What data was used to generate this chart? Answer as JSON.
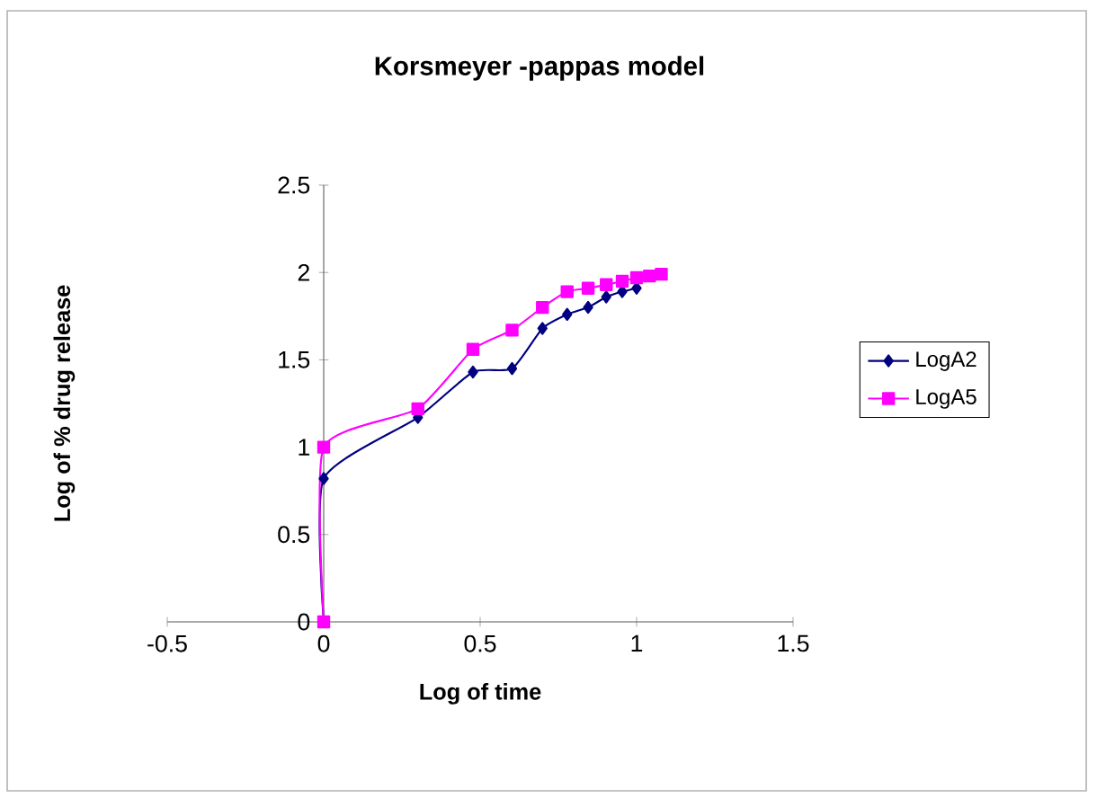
{
  "chart_data": {
    "type": "line",
    "title": "Korsmeyer  -pappas model",
    "xlabel": "Log of time",
    "ylabel": "Log of % drug release",
    "xlim": [
      -0.5,
      1.5
    ],
    "xticks": [
      -0.5,
      0,
      0.5,
      1,
      1.5
    ],
    "ylim": [
      0,
      2.5
    ],
    "yticks": [
      0,
      0.5,
      1,
      1.5,
      2,
      2.5
    ],
    "legend": "right",
    "grid": false,
    "series": [
      {
        "name": "LogA2",
        "color": "#000080",
        "marker": "diamond",
        "x": [
          0,
          0,
          0.301,
          0.477,
          0.602,
          0.699,
          0.778,
          0.845,
          0.903,
          0.954,
          1.0
        ],
        "values": [
          0,
          0.82,
          1.17,
          1.43,
          1.45,
          1.68,
          1.76,
          1.8,
          1.86,
          1.89,
          1.91
        ]
      },
      {
        "name": "LogA5",
        "color": "#ff00ff",
        "marker": "square",
        "x": [
          0,
          0,
          0.301,
          0.477,
          0.602,
          0.699,
          0.778,
          0.845,
          0.903,
          0.954,
          1.0,
          1.041,
          1.079
        ],
        "values": [
          0,
          1.0,
          1.22,
          1.56,
          1.67,
          1.8,
          1.89,
          1.91,
          1.93,
          1.95,
          1.97,
          1.98,
          1.99
        ]
      }
    ]
  }
}
